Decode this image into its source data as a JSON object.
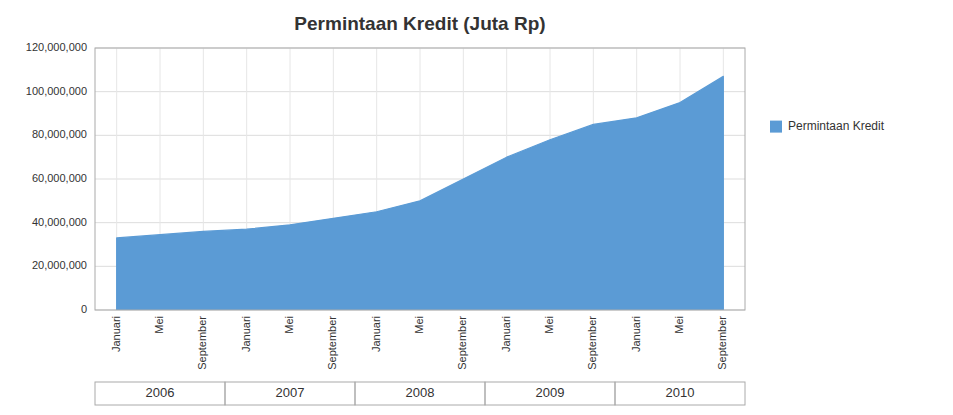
{
  "chart_data": {
    "type": "area",
    "title": "Permintaan Kredit (Juta Rp)",
    "categories": [
      "Januari",
      "Mei",
      "September",
      "Januari",
      "Mei",
      "September",
      "Januari",
      "Mei",
      "September",
      "Januari",
      "Mei",
      "September",
      "Januari",
      "Mei",
      "September"
    ],
    "category_groups": [
      "2006",
      "2007",
      "2008",
      "2009",
      "2010"
    ],
    "series": [
      {
        "name": "Permintaan Kredit",
        "color": "#5B9BD5",
        "values": [
          33000000,
          34500000,
          36000000,
          37000000,
          39000000,
          42000000,
          45000000,
          50000000,
          60000000,
          70000000,
          78000000,
          85000000,
          88000000,
          95000000,
          107000000
        ]
      }
    ],
    "ylim": [
      0,
      120000000
    ],
    "yticks": [
      0,
      {
        "value": 20000000,
        "label": "20,000,000"
      },
      {
        "value": 40000000,
        "label": "40,000,000"
      },
      {
        "value": 60000000,
        "label": "60,000,000"
      },
      {
        "value": 80000000,
        "label": "80,000,000"
      },
      {
        "value": 100000000,
        "label": "100,000,000"
      },
      {
        "value": 120000000,
        "label": "120,000,000"
      }
    ],
    "grid": true,
    "legend": "right"
  }
}
